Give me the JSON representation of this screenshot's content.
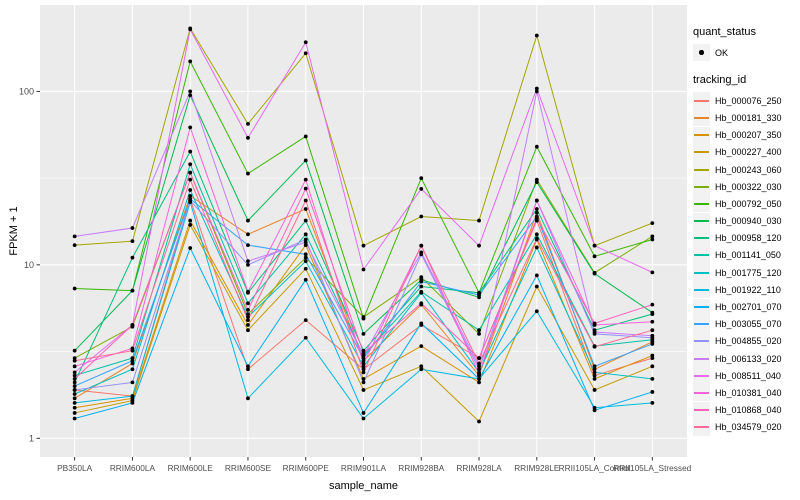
{
  "chart_data": {
    "type": "line",
    "title": "",
    "xlabel": "sample_name",
    "ylabel": "FPKM + 1",
    "yscale": "log10",
    "ylim": [
      0.78,
      315
    ],
    "yticks": [
      1,
      10,
      100
    ],
    "grid": "white major and minor gridlines on grey panel",
    "legend_position": "right",
    "points": "every value marked with a small black point (quant_status = OK)",
    "categories": [
      "PB350LA",
      "RRIM600LA",
      "RRIM600LE",
      "RRIM600SE",
      "RRIM600PE",
      "RRIM901LA",
      "RRIM928BA",
      "RRIM928LA",
      "RRIM928LE",
      "RRII105LA_Control",
      "RRII105LA_Stressed"
    ],
    "series": [
      {
        "name": "Hb_000076_250",
        "color": "#F8766D",
        "values": [
          1.9,
          1.75,
          24,
          2.5,
          4.8,
          2.5,
          4.5,
          2.9,
          18,
          2.3,
          2.9
        ]
      },
      {
        "name": "Hb_000181_330",
        "color": "#E88526",
        "values": [
          1.7,
          2.7,
          25,
          15,
          21,
          2.8,
          5.9,
          2.3,
          20,
          2.5,
          3.6
        ]
      },
      {
        "name": "Hb_000207_350",
        "color": "#D89000",
        "values": [
          1.5,
          1.7,
          18,
          4.5,
          13,
          2.2,
          3.4,
          2.1,
          14,
          2.2,
          3.0
        ]
      },
      {
        "name": "Hb_000227_400",
        "color": "#C49A00",
        "values": [
          1.4,
          1.65,
          17,
          4.2,
          9.5,
          1.9,
          2.6,
          1.25,
          7.5,
          1.9,
          2.6
        ]
      },
      {
        "name": "Hb_000243_060",
        "color": "#A3A500",
        "values": [
          13,
          13.7,
          231,
          65,
          166,
          12.9,
          19,
          18,
          210,
          12.9,
          17.4
        ]
      },
      {
        "name": "Hb_000322_030",
        "color": "#7CAE00",
        "values": [
          2.9,
          4.4,
          34,
          5.2,
          11,
          5.0,
          8.5,
          4.0,
          31,
          9.0,
          14.6
        ]
      },
      {
        "name": "Hb_000792_050",
        "color": "#39B600",
        "values": [
          7.3,
          7.1,
          149,
          33.6,
          55,
          4.9,
          31.6,
          6.9,
          48,
          11.2,
          14.0
        ]
      },
      {
        "name": "Hb_000940_030",
        "color": "#00BB4E",
        "values": [
          3.2,
          7.1,
          95,
          18,
          40,
          4.0,
          8.2,
          6.5,
          30,
          8.9,
          5.3
        ]
      },
      {
        "name": "Hb_000958_120",
        "color": "#00BF7D",
        "values": [
          2.1,
          11,
          45,
          6.9,
          18,
          3.2,
          7.5,
          6.9,
          21,
          4.2,
          5.2
        ]
      },
      {
        "name": "Hb_001141_050",
        "color": "#00C1A3",
        "values": [
          2.3,
          2.9,
          38,
          6.0,
          15,
          3.0,
          7.0,
          4.2,
          15,
          3.4,
          3.7
        ]
      },
      {
        "name": "Hb_001775_120",
        "color": "#00BFC4",
        "values": [
          1.8,
          2.5,
          27,
          5.0,
          10.5,
          2.6,
          6.9,
          2.4,
          12.6,
          2.4,
          2.2
        ]
      },
      {
        "name": "Hb_001922_110",
        "color": "#00BAE0",
        "values": [
          1.6,
          1.75,
          23,
          1.7,
          3.8,
          1.3,
          2.5,
          2.2,
          5.4,
          1.5,
          1.6
        ]
      },
      {
        "name": "Hb_002701_070",
        "color": "#00B0F6",
        "values": [
          1.3,
          1.6,
          12.5,
          2.6,
          8.2,
          1.4,
          4.6,
          2.2,
          8.7,
          1.45,
          1.85
        ]
      },
      {
        "name": "Hb_003055_070",
        "color": "#35A2FF",
        "values": [
          2.0,
          2.8,
          24,
          13,
          11.5,
          2.9,
          8.0,
          6.7,
          19,
          2.6,
          3.5
        ]
      },
      {
        "name": "Hb_004855_020",
        "color": "#9590FF",
        "values": [
          1.9,
          2.1,
          23.5,
          10,
          14,
          2.1,
          11.5,
          2.5,
          23.5,
          4.0,
          3.8
        ]
      },
      {
        "name": "Hb_006133_020",
        "color": "#C77CFF",
        "values": [
          14.6,
          16.3,
          100,
          10.5,
          13.5,
          3.0,
          11.8,
          2.6,
          100,
          4.1,
          3.9
        ]
      },
      {
        "name": "Hb_008511_040",
        "color": "#E76BF3",
        "values": [
          2.4,
          4.5,
          228,
          54,
          192,
          9.4,
          27.4,
          12.9,
          104,
          12.9,
          9.05
        ]
      },
      {
        "name": "Hb_010381_040",
        "color": "#FA62DB",
        "values": [
          2.6,
          3.3,
          62,
          7.0,
          31,
          2.7,
          12.9,
          2.35,
          23.5,
          4.5,
          4.7
        ]
      },
      {
        "name": "Hb_010868_040",
        "color": "#FF62BC",
        "values": [
          2.2,
          4.5,
          34,
          5.5,
          27.5,
          3.1,
          6.0,
          2.9,
          18.5,
          4.6,
          5.9
        ]
      },
      {
        "name": "Hb_034579_020",
        "color": "#FF6A98",
        "values": [
          2.8,
          3.2,
          31,
          4.8,
          23.5,
          2.4,
          12.9,
          2.7,
          14.2,
          3.37,
          4.2
        ]
      }
    ]
  },
  "legend": {
    "quant_status": {
      "title": "quant_status",
      "items": [
        {
          "label": "OK",
          "symbol": "black-point"
        }
      ]
    },
    "tracking_id": {
      "title": "tracking_id"
    }
  },
  "colors": {
    "page_bg": "#FFFFFF",
    "panel_bg": "#EBEBEB",
    "grid": "#FFFFFF",
    "tick_mark": "#333333",
    "tick_label": "#4D4D4D",
    "axis_title": "#000000",
    "point": "#000000",
    "legend_key_bg": "#F2F2F2"
  }
}
